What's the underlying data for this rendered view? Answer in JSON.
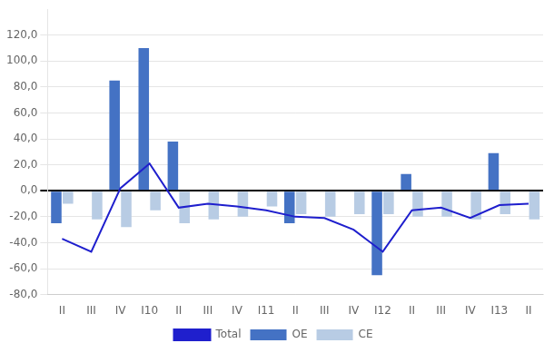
{
  "chart_data": {
    "type": "bar",
    "categories": [
      "II",
      "III",
      "IV",
      "I10",
      "II",
      "III",
      "IV",
      "I11",
      "II",
      "III",
      "IV",
      "I12",
      "II",
      "III",
      "IV",
      "I13",
      "II"
    ],
    "series": [
      {
        "name": "OE",
        "color": "#4472C4",
        "values": [
          -25,
          0,
          85,
          110,
          38,
          0,
          0,
          0,
          -25,
          0,
          0,
          -65,
          13,
          0,
          0,
          29,
          0
        ]
      },
      {
        "name": "CE",
        "color": "#B8CCE4",
        "values": [
          -10,
          -22,
          -28,
          -15,
          -25,
          -22,
          -20,
          -12,
          -18,
          -20,
          -18,
          -18,
          -20,
          -20,
          -22,
          -18,
          -22
        ]
      },
      {
        "name": "Total",
        "type": "line",
        "color": "#1F1FCD",
        "values": [
          -37,
          -47,
          2,
          21,
          -13,
          -10,
          -12,
          -15,
          -20,
          -21,
          -30,
          -47,
          -15,
          -13,
          -21,
          -11,
          -10
        ]
      }
    ],
    "ylim": [
      -80,
      140
    ],
    "yticks": [
      {
        "value": -80,
        "label": "-80,0"
      },
      {
        "value": -60,
        "label": "-60,0"
      },
      {
        "value": -40,
        "label": "-40,0"
      },
      {
        "value": -20,
        "label": "-20,0"
      },
      {
        "value": 0,
        "label": "0,0"
      },
      {
        "value": 20,
        "label": "20,0"
      },
      {
        "value": 40,
        "label": "40,0"
      },
      {
        "value": 60,
        "label": "60,0"
      },
      {
        "value": 80,
        "label": "80,0"
      },
      {
        "value": 100,
        "label": "100,0"
      },
      {
        "value": 120,
        "label": "120,0"
      }
    ],
    "grid": true,
    "legend": "bottom"
  }
}
